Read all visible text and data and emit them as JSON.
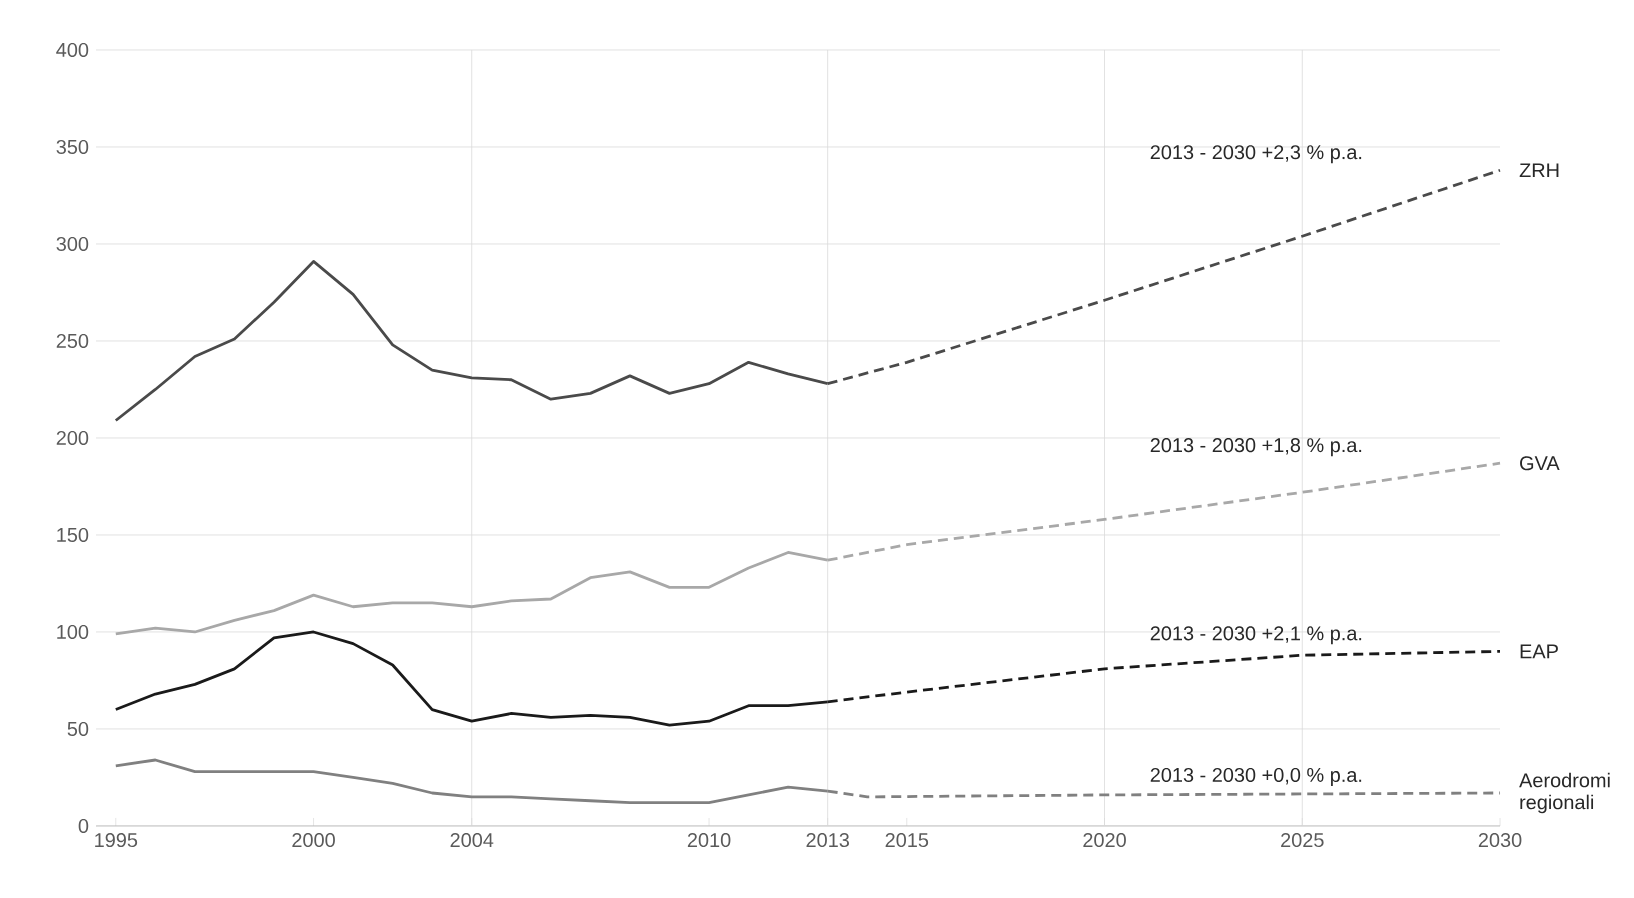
{
  "chart_data": {
    "type": "line",
    "xlim": [
      1994.5,
      2030
    ],
    "ylim": [
      0,
      400
    ],
    "xticks": [
      1995,
      2000,
      2004,
      2010,
      2013,
      2015,
      2020,
      2025,
      2030
    ],
    "yticks": [
      0,
      50,
      100,
      150,
      200,
      250,
      300,
      350,
      400
    ],
    "grid": "y",
    "ref_lines": [
      {
        "axis": "x",
        "value": 2004,
        "color": "#d9d9d9"
      },
      {
        "axis": "x",
        "value": 2013,
        "color": "#d9d9d9"
      },
      {
        "axis": "x",
        "value": 2020,
        "color": "#d9d9d9"
      },
      {
        "axis": "x",
        "value": 2025,
        "color": "#d9d9d9"
      }
    ],
    "series": [
      {
        "color": "#4a4a4a",
        "line_style": "solid",
        "x": [
          1995,
          1996,
          1997,
          1998,
          1999,
          2000,
          2001,
          2002,
          2003,
          2004,
          2005,
          2006,
          2007,
          2008,
          2009,
          2010,
          2011,
          2012,
          2013
        ],
        "values": [
          209,
          225,
          242,
          251,
          270,
          291,
          274,
          248,
          235,
          231,
          230,
          220,
          223,
          232,
          223,
          228,
          239,
          233,
          228
        ]
      },
      {
        "color": "#a8a8a8",
        "line_style": "solid",
        "x": [
          1995,
          1996,
          1997,
          1998,
          1999,
          2000,
          2001,
          2002,
          2003,
          2004,
          2005,
          2006,
          2007,
          2008,
          2009,
          2010,
          2011,
          2012,
          2013
        ],
        "values": [
          99,
          102,
          100,
          106,
          111,
          119,
          113,
          115,
          115,
          113,
          116,
          117,
          128,
          131,
          123,
          123,
          133,
          141,
          137
        ]
      },
      {
        "color": "#1a1a1a",
        "line_style": "solid",
        "x": [
          1995,
          1996,
          1997,
          1998,
          1999,
          2000,
          2001,
          2002,
          2003,
          2004,
          2005,
          2006,
          2007,
          2008,
          2009,
          2010,
          2011,
          2012,
          2013
        ],
        "values": [
          60,
          68,
          73,
          81,
          97,
          100,
          94,
          83,
          60,
          54,
          58,
          56,
          57,
          56,
          52,
          54,
          62,
          62,
          64
        ]
      },
      {
        "color": "#808080",
        "line_style": "solid",
        "x": [
          1995,
          1996,
          1997,
          1998,
          1999,
          2000,
          2001,
          2002,
          2003,
          2004,
          2005,
          2006,
          2007,
          2008,
          2009,
          2010,
          2011,
          2012,
          2013
        ],
        "values": [
          31,
          34,
          28,
          28,
          28,
          28,
          25,
          22,
          17,
          15,
          15,
          14,
          13,
          12,
          12,
          12,
          16,
          20,
          18
        ]
      },
      {
        "name": "ZRH",
        "color": "#4a4a4a",
        "line_style": "dashed",
        "x": [
          2013,
          2015,
          2020,
          2025,
          2030
        ],
        "values": [
          228,
          239,
          271,
          304,
          338
        ]
      },
      {
        "name": "GVA",
        "color": "#a8a8a8",
        "line_style": "dashed",
        "x": [
          2013,
          2015,
          2020,
          2025,
          2030
        ],
        "values": [
          137,
          145,
          158,
          172,
          187
        ]
      },
      {
        "name": "EAP",
        "color": "#1a1a1a",
        "line_style": "dashed",
        "x": [
          2013,
          2015,
          2020,
          2025,
          2030
        ],
        "values": [
          64,
          69,
          81,
          88,
          90
        ]
      },
      {
        "name": "Aerodromi regionali",
        "color": "#808080",
        "line_style": "dashed",
        "x": [
          2013,
          2014,
          2020,
          2030
        ],
        "values": [
          18,
          15,
          16,
          17
        ]
      }
    ],
    "annotations": [
      "2013 - 2030 +2,3 % p.a.",
      "2013 - 2030 +1,8 % p.a.",
      "2013 - 2030 +2,1 % p.a.",
      "2013 - 2030 +0,0 % p.a."
    ]
  }
}
